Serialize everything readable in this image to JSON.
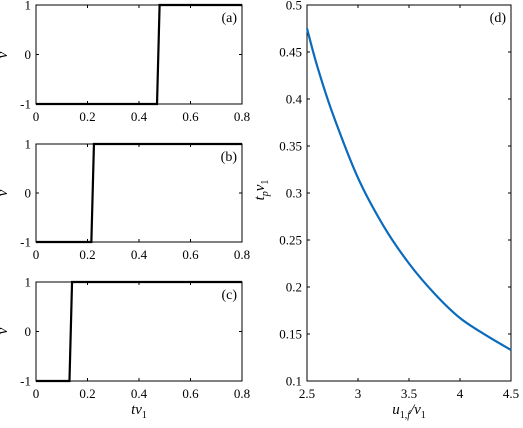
{
  "chart_data": [
    {
      "id": "a",
      "type": "line",
      "panel_label": "(a)",
      "ylabel": "v",
      "xlabel": "",
      "xlim": [
        0,
        0.8
      ],
      "ylim": [
        -1,
        1
      ],
      "xticks": [
        "0",
        "0.2",
        "0.4",
        "0.6",
        "0.8"
      ],
      "yticks": [
        "-1",
        "0",
        "1"
      ],
      "x": [
        0,
        0.47,
        0.48,
        0.8
      ],
      "y": [
        -1,
        -1,
        1,
        1
      ]
    },
    {
      "id": "b",
      "type": "line",
      "panel_label": "(b)",
      "ylabel": "v",
      "xlabel": "",
      "xlim": [
        0,
        0.8
      ],
      "ylim": [
        -1,
        1
      ],
      "xticks": [
        "0",
        "0.2",
        "0.4",
        "0.6",
        "0.8"
      ],
      "yticks": [
        "-1",
        "0",
        "1"
      ],
      "x": [
        0,
        0.215,
        0.225,
        0.8
      ],
      "y": [
        -1,
        -1,
        1,
        1
      ]
    },
    {
      "id": "c",
      "type": "line",
      "panel_label": "(c)",
      "ylabel": "v",
      "xlabel": "tv1",
      "xlim": [
        0,
        0.8
      ],
      "ylim": [
        -1,
        1
      ],
      "xticks": [
        "0",
        "0.2",
        "0.4",
        "0.6",
        "0.8"
      ],
      "yticks": [
        "-1",
        "0",
        "1"
      ],
      "x": [
        0,
        0.13,
        0.14,
        0.8
      ],
      "y": [
        -1,
        -1,
        1,
        1
      ]
    },
    {
      "id": "d",
      "type": "line",
      "panel_label": "(d)",
      "ylabel": "tpv1",
      "xlabel": "u1,f/v1",
      "xlim": [
        2.5,
        4.5
      ],
      "ylim": [
        0.1,
        0.5
      ],
      "xticks": [
        "2.5",
        "3",
        "3.5",
        "4",
        "4.5"
      ],
      "yticks": [
        "0.1",
        "0.15",
        "0.2",
        "0.25",
        "0.3",
        "0.35",
        "0.4",
        "0.45",
        "0.5"
      ],
      "x": [
        2.5,
        2.6,
        2.75,
        3.0,
        3.25,
        3.5,
        3.75,
        4.0,
        4.25,
        4.5
      ],
      "y": [
        0.475,
        0.435,
        0.385,
        0.316,
        0.265,
        0.225,
        0.193,
        0.167,
        0.149,
        0.133
      ]
    }
  ]
}
